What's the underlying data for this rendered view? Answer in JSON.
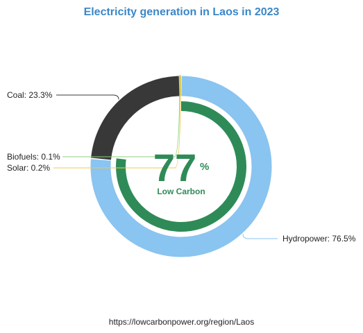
{
  "chart_data": {
    "type": "pie",
    "title": "Electricity generation in Laos in 2023",
    "series": [
      {
        "name": "Hydropower",
        "label": "Hydropower: 76.5%",
        "value": 76.5,
        "color": "#8ac4f0"
      },
      {
        "name": "Coal",
        "label": "Coal: 23.3%",
        "value": 23.3,
        "color": "#383838"
      },
      {
        "name": "Biofuels",
        "label": "Biofuels: 0.1%",
        "value": 0.1,
        "color": "#8bd17a"
      },
      {
        "name": "Solar",
        "label": "Solar: 0.2%",
        "value": 0.2,
        "color": "#f2c84b"
      }
    ],
    "low_carbon": {
      "value": 77,
      "percent_sign": "%",
      "label": "Low Carbon",
      "color": "#2e8b57",
      "fraction": 0.77
    }
  },
  "source": "https://lowcarbonpower.org/region/Laos"
}
